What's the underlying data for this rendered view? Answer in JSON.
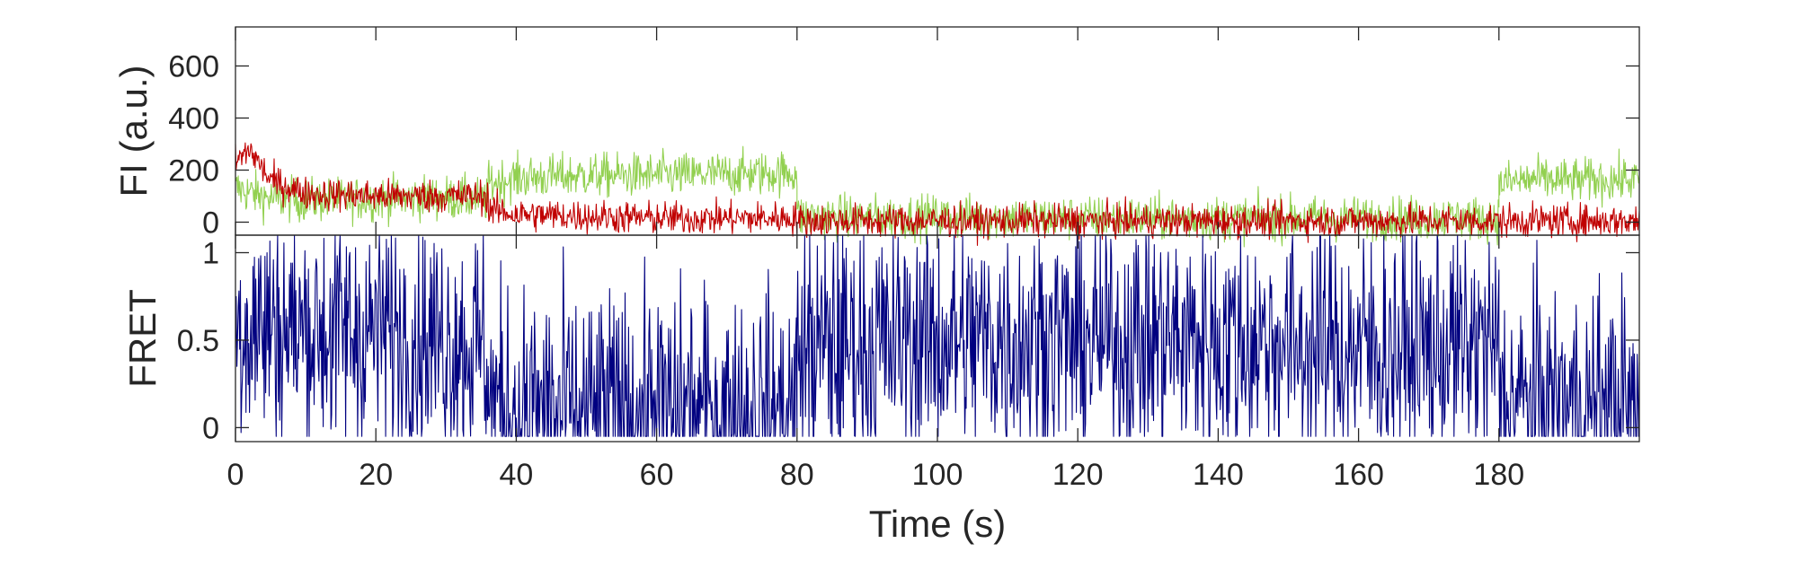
{
  "chart_data": [
    {
      "type": "line",
      "panel": "top",
      "ylabel": "FI (a.u.)",
      "xlim": [
        0,
        200
      ],
      "ylim": [
        -50,
        750
      ],
      "yticks": [
        0,
        200,
        400,
        600
      ],
      "grid": false,
      "legend": "none",
      "series": [
        {
          "color": "#92d050",
          "segments": [
            {
              "x": [
                0,
                5,
                10,
                20,
                30,
                36
              ],
              "y": [
                130,
                90,
                85,
                90,
                95,
                85
              ]
            },
            {
              "x": [
                36,
                40,
                50,
                60,
                70,
                80
              ],
              "y": [
                150,
                170,
                180,
                180,
                185,
                190
              ]
            },
            {
              "x": [
                80,
                100,
                120,
                140,
                160,
                180
              ],
              "y": [
                20,
                20,
                15,
                15,
                15,
                15
              ]
            },
            {
              "x": [
                180,
                185,
                190,
                200
              ],
              "y": [
                150,
                165,
                160,
                165
              ]
            }
          ],
          "noise": 60
        },
        {
          "color": "#c00000",
          "segments": [
            {
              "x": [
                0,
                2,
                5,
                10,
                20,
                30,
                36
              ],
              "y": [
                230,
                280,
                160,
                110,
                100,
                100,
                100
              ]
            },
            {
              "x": [
                36,
                40,
                60,
                80
              ],
              "y": [
                50,
                30,
                15,
                15
              ]
            },
            {
              "x": [
                80,
                100,
                120,
                140,
                160,
                180,
                200
              ],
              "y": [
                5,
                5,
                5,
                5,
                5,
                5,
                5
              ]
            }
          ],
          "noise": 45
        }
      ]
    },
    {
      "type": "line",
      "panel": "bottom",
      "xlabel": "Time (s)",
      "ylabel": "FRET",
      "xlim": [
        0,
        200
      ],
      "ylim": [
        -0.08,
        1.1
      ],
      "xticks": [
        0,
        20,
        40,
        60,
        80,
        100,
        120,
        140,
        160,
        180
      ],
      "yticks": [
        0,
        0.5,
        1
      ],
      "ytick_labels": [
        "0",
        "0.5",
        "1"
      ],
      "grid": false,
      "legend": "none",
      "series": [
        {
          "color": "#000080",
          "segments": [
            {
              "x": [
                0,
                10,
                20,
                30,
                36
              ],
              "y": [
                0.6,
                0.55,
                0.55,
                0.5,
                0.45
              ]
            },
            {
              "x": [
                36,
                40,
                50,
                60,
                70,
                80
              ],
              "y": [
                0.15,
                0.1,
                0.08,
                0.1,
                0.08,
                0.1
              ]
            },
            {
              "x": [
                80,
                100,
                120,
                140,
                160,
                180
              ],
              "y": [
                0.45,
                0.5,
                0.5,
                0.5,
                0.45,
                0.45
              ]
            },
            {
              "x": [
                180,
                190,
                200
              ],
              "y": [
                0.15,
                0.12,
                0.1
              ]
            }
          ],
          "noise": 0.5
        }
      ]
    }
  ]
}
